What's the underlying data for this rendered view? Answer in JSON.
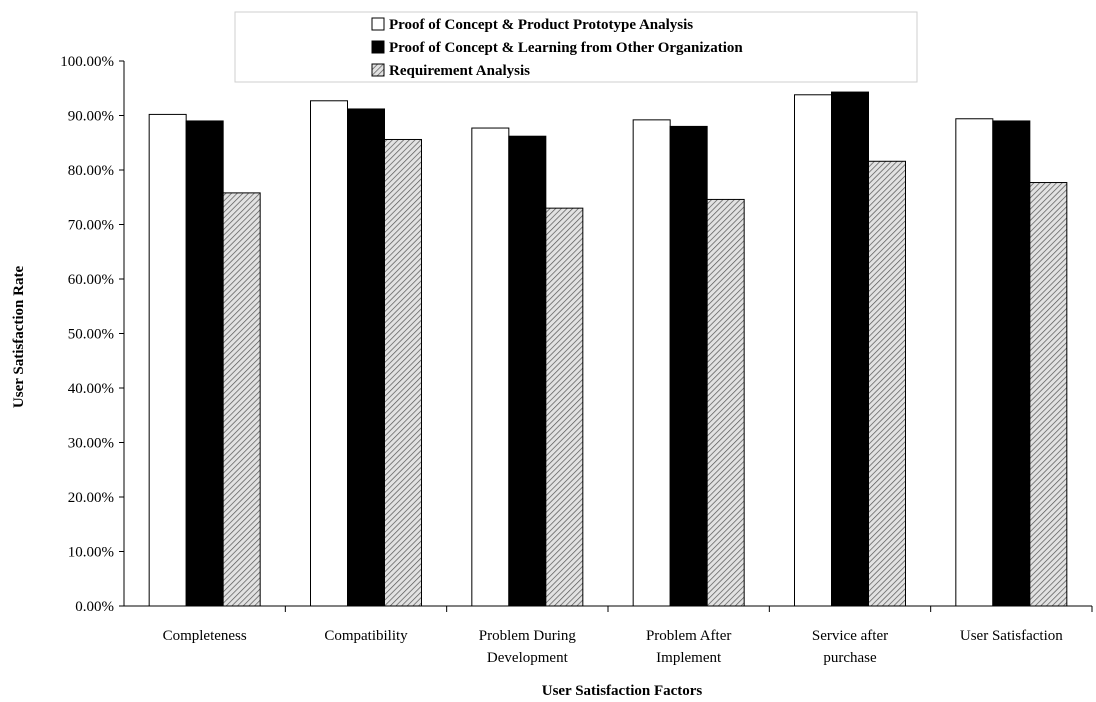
{
  "chart_data": {
    "type": "bar",
    "categories": [
      [
        "Completeness"
      ],
      [
        "Compatibility"
      ],
      [
        "Problem During",
        "Development"
      ],
      [
        "Problem After",
        "Implement"
      ],
      [
        "Service after",
        "purchase"
      ],
      [
        "User Satisfaction"
      ]
    ],
    "series": [
      {
        "name": "Proof of Concept & Product Prototype Analysis",
        "values": [
          90.2,
          92.7,
          87.7,
          89.2,
          93.8,
          89.4
        ],
        "fill": "#ffffff"
      },
      {
        "name": "Proof of Concept & Learning from Other Organization",
        "values": [
          89.0,
          91.2,
          86.2,
          88.0,
          94.3,
          89.0
        ],
        "fill": "#000000"
      },
      {
        "name": "Requirement Analysis",
        "values": [
          75.8,
          85.6,
          73.0,
          74.6,
          81.6,
          77.7
        ],
        "fill": "hatch"
      }
    ],
    "xlabel": "User Satisfaction Factors",
    "ylabel": "User Satisfaction Rate",
    "ylim": [
      0,
      100
    ],
    "yticks": [
      "0.00%",
      "10.00%",
      "20.00%",
      "30.00%",
      "40.00%",
      "50.00%",
      "60.00%",
      "70.00%",
      "80.00%",
      "90.00%",
      "100.00%"
    ],
    "grid": false,
    "legend_position": "top"
  }
}
